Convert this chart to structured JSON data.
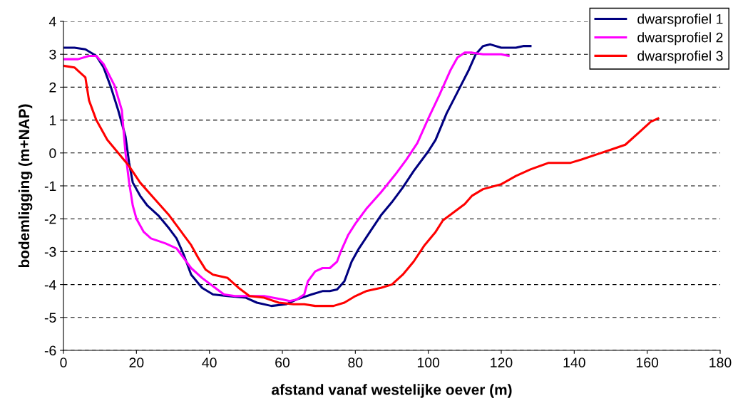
{
  "chart_data": {
    "type": "line",
    "xlabel": "afstand vanaf westelijke oever (m)",
    "ylabel": "bodemligging (m+NAP)",
    "xlim": [
      0,
      180
    ],
    "xticks": [
      0,
      20,
      40,
      60,
      80,
      100,
      120,
      140,
      160,
      180
    ],
    "ylim": [
      -6,
      4
    ],
    "yticks": [
      -6,
      -5,
      -4,
      -3,
      -2,
      -1,
      0,
      1,
      2,
      3,
      4
    ],
    "grid": "y",
    "legend": "top right",
    "line_style": "solid",
    "marker": "none",
    "series": [
      {
        "name": "dwarsprofiel 1",
        "color": "#000080",
        "x": [
          0,
          3,
          6,
          9,
          11,
          13,
          15,
          17,
          18,
          19,
          21,
          23,
          26,
          29,
          31,
          33,
          35,
          38,
          41,
          45,
          50,
          53,
          57,
          61,
          64,
          68,
          71,
          73,
          75,
          77,
          79,
          81,
          84,
          87,
          90,
          93,
          96,
          100,
          102,
          105,
          108,
          111,
          113,
          115,
          117,
          120,
          124,
          126,
          128
        ],
        "values": [
          3.2,
          3.2,
          3.15,
          2.95,
          2.6,
          2.0,
          1.3,
          0.5,
          -0.3,
          -0.9,
          -1.3,
          -1.6,
          -1.9,
          -2.3,
          -2.6,
          -3.1,
          -3.7,
          -4.1,
          -4.3,
          -4.35,
          -4.4,
          -4.55,
          -4.65,
          -4.6,
          -4.45,
          -4.3,
          -4.2,
          -4.2,
          -4.15,
          -3.9,
          -3.3,
          -2.9,
          -2.4,
          -1.9,
          -1.5,
          -1.05,
          -0.55,
          0.05,
          0.4,
          1.2,
          1.85,
          2.5,
          3.0,
          3.25,
          3.3,
          3.2,
          3.2,
          3.25,
          3.25
        ]
      },
      {
        "name": "dwarsprofiel 2",
        "color": "#ff00ff",
        "x": [
          0,
          4,
          7,
          9,
          11,
          14,
          16,
          17,
          18,
          19,
          20,
          22,
          24,
          28,
          31,
          33,
          35,
          38,
          41,
          44,
          47,
          50,
          55,
          60,
          62,
          64,
          66,
          67,
          69,
          71,
          73,
          75,
          76,
          78,
          80,
          83,
          87,
          91,
          94,
          97,
          100,
          103,
          106,
          108,
          110,
          112,
          115,
          120,
          122
        ],
        "values": [
          2.85,
          2.85,
          2.95,
          2.95,
          2.7,
          2.05,
          1.3,
          0,
          -0.9,
          -1.6,
          -2.0,
          -2.4,
          -2.6,
          -2.75,
          -2.9,
          -3.2,
          -3.5,
          -3.8,
          -4.05,
          -4.3,
          -4.35,
          -4.35,
          -4.35,
          -4.45,
          -4.5,
          -4.45,
          -4.3,
          -3.9,
          -3.6,
          -3.5,
          -3.5,
          -3.3,
          -3.0,
          -2.5,
          -2.15,
          -1.7,
          -1.2,
          -0.65,
          -0.2,
          0.3,
          1.05,
          1.75,
          2.5,
          2.9,
          3.05,
          3.05,
          3.0,
          3.0,
          2.95
        ]
      },
      {
        "name": "dwarsprofiel 3",
        "color": "#ff0000",
        "x": [
          0,
          3,
          4,
          6,
          7,
          9,
          12,
          15,
          18,
          21,
          25,
          29,
          33,
          35,
          37,
          39,
          41,
          45,
          48,
          51,
          55,
          59,
          63,
          66,
          69,
          74,
          77,
          80,
          83,
          87,
          90,
          93,
          96,
          99,
          102,
          104,
          107,
          110,
          112,
          115,
          120,
          124,
          128,
          133,
          139,
          142,
          146,
          150,
          154,
          158,
          161,
          163
        ],
        "values": [
          2.65,
          2.6,
          2.5,
          2.3,
          1.6,
          1.0,
          0.4,
          0,
          -0.4,
          -0.9,
          -1.4,
          -1.9,
          -2.5,
          -2.8,
          -3.2,
          -3.55,
          -3.7,
          -3.8,
          -4.1,
          -4.35,
          -4.4,
          -4.55,
          -4.6,
          -4.6,
          -4.65,
          -4.65,
          -4.55,
          -4.35,
          -4.2,
          -4.1,
          -4.0,
          -3.7,
          -3.3,
          -2.8,
          -2.4,
          -2.05,
          -1.8,
          -1.55,
          -1.3,
          -1.1,
          -0.95,
          -0.7,
          -0.5,
          -0.3,
          -0.3,
          -0.2,
          -0.05,
          0.1,
          0.25,
          0.65,
          0.95,
          1.05
        ]
      }
    ]
  }
}
